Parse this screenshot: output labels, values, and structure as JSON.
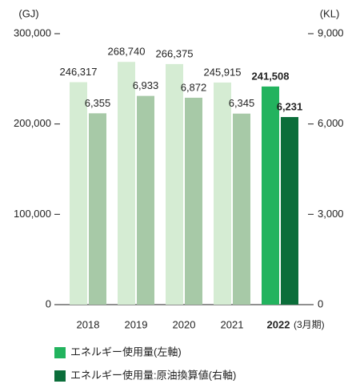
{
  "chart_data": {
    "type": "bar",
    "y_unit": "(GJ)",
    "y2_unit": "(KL)",
    "categories": [
      "2018",
      "2019",
      "2020",
      "2021",
      "2022"
    ],
    "category_note": "(3月期)",
    "ylim": [
      0,
      300000
    ],
    "yticks": [
      0,
      {
        "value": 100000,
        "label": "100,000"
      },
      {
        "value": 200000,
        "label": "200,000"
      },
      {
        "value": 300000,
        "label": "300,000"
      }
    ],
    "y2lim": [
      0,
      9000
    ],
    "y2ticks": [
      0,
      {
        "value": 3000,
        "label": "3,000"
      },
      {
        "value": 6000,
        "label": "6,000"
      },
      {
        "value": 9000,
        "label": "9,000"
      }
    ],
    "series": [
      {
        "name": "エネルギー使用量(左軸)",
        "color": "#22b35e",
        "colors": [
          "#d5ecd3",
          "#d5ecd3",
          "#d5ecd3",
          "#d5ecd3",
          "#22b35e"
        ],
        "values": [
          246317,
          268740,
          266375,
          245915,
          241508
        ],
        "value_labels": [
          "246,317",
          "268,740",
          "266,375",
          "245,915",
          "241,508"
        ]
      },
      {
        "name": "エネルギー使用量:原油換算値(右軸)",
        "color": "#0b6e3a",
        "axis": "y2",
        "colors": [
          "#a7c9a7",
          "#a7c9a7",
          "#a7c9a7",
          "#a7c9a7",
          "#0b6e3a"
        ],
        "values": [
          6355,
          6933,
          6872,
          6345,
          6231
        ],
        "value_labels": [
          "6,355",
          "6,933",
          "6,872",
          "6,345",
          "6,231"
        ]
      }
    ]
  }
}
